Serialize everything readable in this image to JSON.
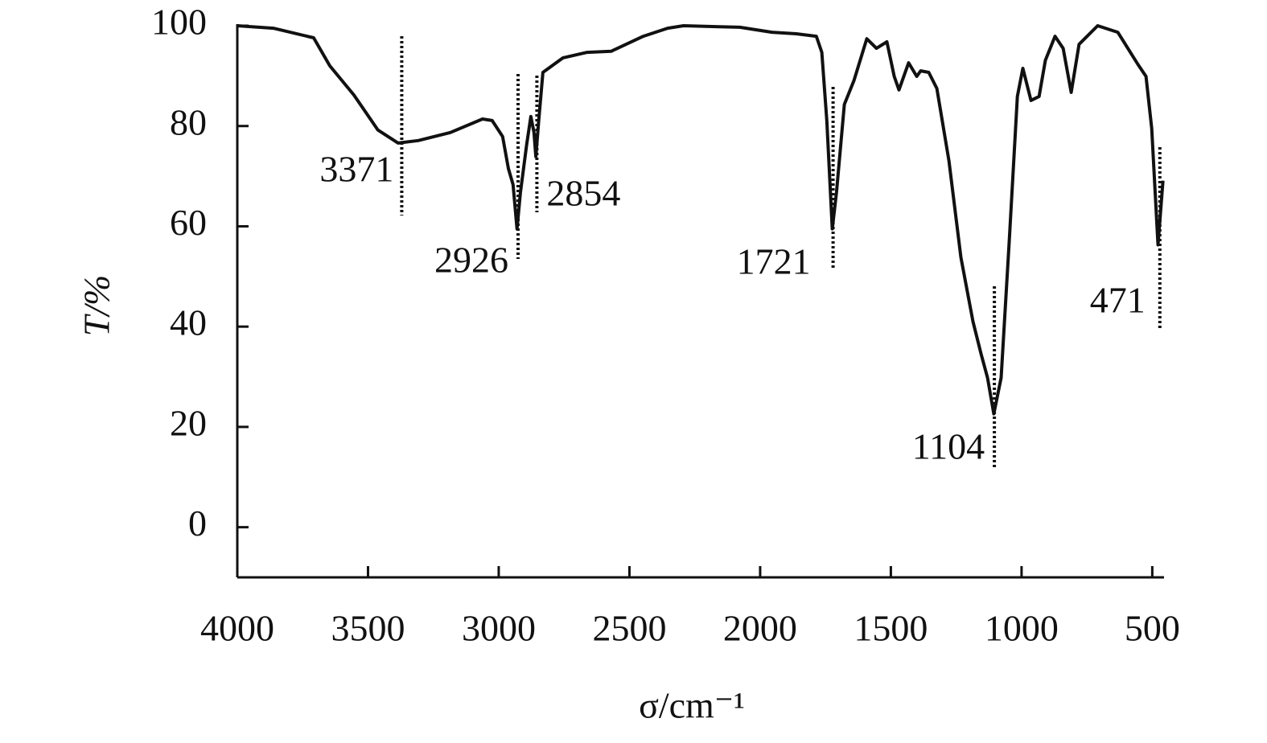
{
  "chart_data": {
    "type": "line",
    "x_label": "σ/cm⁻¹",
    "y_label": "T/%",
    "xlim": [
      4000,
      455
    ],
    "ylim": [
      -10,
      100
    ],
    "xticks": [
      4000,
      3500,
      3000,
      2500,
      2000,
      1500,
      1000,
      500
    ],
    "yticks": [
      0,
      20,
      40,
      60,
      80,
      100
    ],
    "series": [
      {
        "color": "#111111",
        "x": [
          4000,
          3862,
          3708,
          3646,
          3554,
          3462,
          3385,
          3308,
          3185,
          3062,
          3025,
          2985,
          2963,
          2945,
          2930,
          2917,
          2893,
          2877,
          2865,
          2858,
          2847,
          2831,
          2754,
          2662,
          2570,
          2447,
          2354,
          2293,
          2078,
          1955,
          1862,
          1785,
          1764,
          1745,
          1724,
          1708,
          1678,
          1641,
          1592,
          1555,
          1515,
          1487,
          1469,
          1432,
          1401,
          1386,
          1355,
          1324,
          1278,
          1232,
          1186,
          1155,
          1130,
          1106,
          1078,
          1047,
          1016,
          995,
          964,
          933,
          909,
          872,
          841,
          810,
          780,
          709,
          632,
          555,
          524,
          502,
          478,
          459
        ],
        "values": [
          100,
          99.5,
          97.6,
          92,
          86.2,
          79.2,
          76.6,
          77.1,
          78.7,
          81.4,
          81.1,
          77.9,
          71.5,
          68.3,
          59.5,
          66.7,
          76.3,
          81.9,
          78.7,
          73.9,
          81.1,
          90.7,
          93.6,
          94.7,
          94.9,
          97.9,
          99.5,
          100,
          99.7,
          98.7,
          98.4,
          97.9,
          94.7,
          81.1,
          59.5,
          66.7,
          84.3,
          89.1,
          97.4,
          95.5,
          96.8,
          89.9,
          87.2,
          92.6,
          89.9,
          91,
          90.7,
          87.5,
          73.1,
          53.8,
          41,
          34.6,
          29.8,
          22.6,
          29.8,
          57.1,
          85.9,
          91.5,
          85.1,
          85.9,
          93.1,
          97.9,
          95.5,
          86.7,
          96.3,
          100,
          98.7,
          92.3,
          89.9,
          79.5,
          56.3,
          69.1
        ]
      }
    ],
    "peaks": [
      3371,
      2926,
      2854,
      1721,
      1104,
      471
    ]
  }
}
